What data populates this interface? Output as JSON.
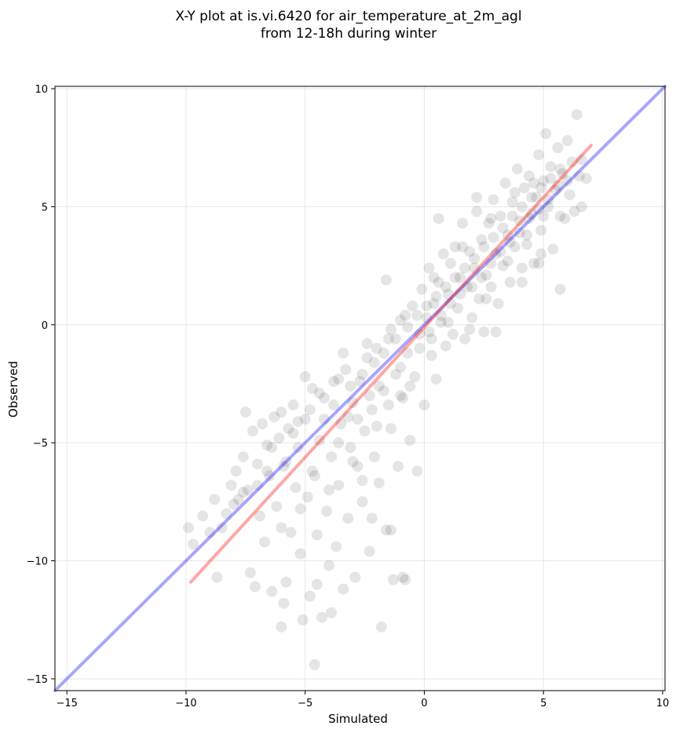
{
  "chart_data": {
    "type": "scatter",
    "title_line1": "X-Y plot at is.vi.6420 for air_temperature_at_2m_agl",
    "title_line2": "from 12-18h during winter",
    "xlabel": "Simulated",
    "ylabel": "Observed",
    "xlim": [
      -15.5,
      10.1
    ],
    "ylim": [
      -15.5,
      10.1
    ],
    "xticks": [
      -15,
      -10,
      -5,
      0,
      5,
      10
    ],
    "yticks": [
      -15,
      -10,
      -5,
      0,
      5,
      10
    ],
    "xtick_labels": [
      "−15",
      "−10",
      "−5",
      "0",
      "5",
      "10"
    ],
    "ytick_labels": [
      "−15",
      "−10",
      "−5",
      "0",
      "5",
      "10"
    ],
    "grid": true,
    "point_color": "#000000",
    "identity_line": {
      "color": "#0000ff",
      "x": [
        -15.5,
        10.1
      ],
      "y": [
        -15.5,
        10.1
      ]
    },
    "fit_line": {
      "color": "#ff0000",
      "x": [
        -9.8,
        7.0
      ],
      "y": [
        -10.9,
        7.6
      ]
    },
    "points": [
      [
        -9.9,
        -8.6
      ],
      [
        -9.7,
        -9.3
      ],
      [
        -9.3,
        -8.1
      ],
      [
        -9.0,
        -8.8
      ],
      [
        -8.8,
        -7.4
      ],
      [
        -8.7,
        -10.7
      ],
      [
        -8.5,
        -8.6
      ],
      [
        -8.3,
        -8.0
      ],
      [
        -8.1,
        -6.8
      ],
      [
        -7.9,
        -6.2
      ],
      [
        -7.8,
        -7.4
      ],
      [
        -7.6,
        -5.6
      ],
      [
        -7.5,
        -3.7
      ],
      [
        -7.4,
        -7.0
      ],
      [
        -7.3,
        -10.5
      ],
      [
        -7.2,
        -4.5
      ],
      [
        -7.1,
        -11.1
      ],
      [
        -7.0,
        -6.8
      ],
      [
        -6.9,
        -8.1
      ],
      [
        -6.8,
        -4.2
      ],
      [
        -6.7,
        -9.2
      ],
      [
        -6.6,
        -5.1
      ],
      [
        -6.5,
        -6.4
      ],
      [
        -6.4,
        -11.3
      ],
      [
        -6.3,
        -3.9
      ],
      [
        -6.2,
        -7.7
      ],
      [
        -6.1,
        -4.8
      ],
      [
        -6.0,
        -12.8
      ],
      [
        -5.9,
        -6.0
      ],
      [
        -5.8,
        -10.9
      ],
      [
        -5.7,
        -4.4
      ],
      [
        -5.6,
        -8.8
      ],
      [
        -5.5,
        -3.4
      ],
      [
        -5.4,
        -6.9
      ],
      [
        -5.3,
        -5.2
      ],
      [
        -5.2,
        -9.7
      ],
      [
        -5.1,
        -12.5
      ],
      [
        -5.0,
        -4.0
      ],
      [
        -4.9,
        -7.3
      ],
      [
        -4.8,
        -11.5
      ],
      [
        -4.7,
        -2.7
      ],
      [
        -4.6,
        -6.4
      ],
      [
        -4.5,
        -8.9
      ],
      [
        -4.4,
        -4.9
      ],
      [
        -4.3,
        -12.4
      ],
      [
        -4.2,
        -3.1
      ],
      [
        -4.1,
        -7.9
      ],
      [
        -4.0,
        -10.2
      ],
      [
        -3.9,
        -5.6
      ],
      [
        -3.8,
        -2.4
      ],
      [
        -3.7,
        -9.4
      ],
      [
        -3.6,
        -6.8
      ],
      [
        -3.5,
        -4.2
      ],
      [
        -3.4,
        -11.2
      ],
      [
        -3.3,
        -1.9
      ],
      [
        -3.2,
        -8.2
      ],
      [
        -3.1,
        -5.2
      ],
      [
        -3.0,
        -3.3
      ],
      [
        -2.9,
        -10.7
      ],
      [
        -2.8,
        -6.0
      ],
      [
        -2.7,
        -2.4
      ],
      [
        -2.6,
        -7.5
      ],
      [
        -2.5,
        -4.5
      ],
      [
        -2.4,
        -1.4
      ],
      [
        -2.3,
        -9.6
      ],
      [
        -2.2,
        -3.6
      ],
      [
        -2.1,
        -5.6
      ],
      [
        -2.0,
        -1.0
      ],
      [
        -1.9,
        -6.7
      ],
      [
        -1.8,
        -12.8
      ],
      [
        -1.7,
        -2.8
      ],
      [
        -1.6,
        -8.7
      ],
      [
        -1.5,
        -0.6
      ],
      [
        -1.4,
        -4.4
      ],
      [
        -1.3,
        -10.8
      ],
      [
        -1.2,
        -2.1
      ],
      [
        -1.1,
        -6.0
      ],
      [
        -1.0,
        0.2
      ],
      [
        -0.9,
        -3.1
      ],
      [
        -0.8,
        -10.8
      ],
      [
        -0.7,
        -1.2
      ],
      [
        -0.6,
        -4.9
      ],
      [
        -0.5,
        0.8
      ],
      [
        -0.4,
        -2.2
      ],
      [
        -0.3,
        -6.2
      ],
      [
        -0.2,
        -0.4
      ],
      [
        -0.1,
        1.5
      ],
      [
        0.0,
        -3.4
      ],
      [
        0.1,
        0.3
      ],
      [
        0.2,
        2.4
      ],
      [
        0.3,
        -1.3
      ],
      [
        0.4,
        0.9
      ],
      [
        0.5,
        -2.3
      ],
      [
        0.6,
        1.8
      ],
      [
        0.7,
        0.1
      ],
      [
        0.8,
        3.0
      ],
      [
        0.9,
        -0.9
      ],
      [
        1.0,
        1.3
      ],
      [
        1.1,
        2.6
      ],
      [
        1.2,
        -0.4
      ],
      [
        1.3,
        3.3
      ],
      [
        1.4,
        0.7
      ],
      [
        1.5,
        2.0
      ],
      [
        1.6,
        4.3
      ],
      [
        1.7,
        -0.6
      ],
      [
        1.8,
        1.6
      ],
      [
        1.9,
        3.1
      ],
      [
        2.0,
        0.3
      ],
      [
        2.1,
        2.4
      ],
      [
        2.2,
        4.8
      ],
      [
        2.3,
        1.1
      ],
      [
        2.4,
        3.6
      ],
      [
        2.5,
        -0.3
      ],
      [
        2.6,
        2.1
      ],
      [
        2.7,
        4.3
      ],
      [
        2.8,
        1.6
      ],
      [
        2.9,
        5.3
      ],
      [
        3.0,
        3.0
      ],
      [
        3.1,
        0.9
      ],
      [
        3.2,
        4.6
      ],
      [
        3.3,
        2.5
      ],
      [
        3.4,
        6.0
      ],
      [
        3.5,
        3.8
      ],
      [
        3.6,
        1.8
      ],
      [
        3.7,
        5.2
      ],
      [
        3.8,
        3.3
      ],
      [
        3.9,
        6.6
      ],
      [
        4.0,
        4.4
      ],
      [
        4.1,
        2.4
      ],
      [
        4.2,
        5.8
      ],
      [
        4.3,
        3.8
      ],
      [
        4.4,
        6.3
      ],
      [
        4.5,
        4.7
      ],
      [
        4.6,
        2.6
      ],
      [
        4.7,
        5.4
      ],
      [
        4.8,
        7.2
      ],
      [
        4.9,
        4.0
      ],
      [
        5.0,
        6.1
      ],
      [
        5.1,
        8.1
      ],
      [
        5.2,
        5.0
      ],
      [
        5.3,
        6.7
      ],
      [
        5.4,
        3.2
      ],
      [
        5.5,
        5.7
      ],
      [
        5.6,
        7.5
      ],
      [
        5.7,
        1.5
      ],
      [
        5.8,
        6.4
      ],
      [
        5.9,
        4.5
      ],
      [
        6.0,
        7.8
      ],
      [
        6.1,
        5.5
      ],
      [
        6.2,
        6.9
      ],
      [
        6.3,
        4.8
      ],
      [
        6.4,
        8.9
      ],
      [
        6.5,
        6.3
      ],
      [
        6.6,
        5.0
      ],
      [
        6.8,
        6.2
      ],
      [
        -4.6,
        -14.4
      ],
      [
        -5.9,
        -11.8
      ],
      [
        -4.5,
        -11.0
      ],
      [
        -3.9,
        -12.2
      ],
      [
        -2.2,
        -8.2
      ],
      [
        -1.4,
        -8.7
      ],
      [
        -0.9,
        -10.7
      ],
      [
        -2.6,
        -6.6
      ],
      [
        -5.0,
        -2.2
      ],
      [
        -3.4,
        -1.2
      ],
      [
        -1.6,
        1.9
      ],
      [
        -1.4,
        -0.2
      ],
      [
        0.6,
        4.5
      ],
      [
        2.2,
        5.4
      ],
      [
        1.9,
        -0.2
      ],
      [
        3.0,
        -0.3
      ],
      [
        4.1,
        1.8
      ],
      [
        4.8,
        2.6
      ],
      [
        4.9,
        3.0
      ],
      [
        5.7,
        4.6
      ],
      [
        6.6,
        7.0
      ],
      [
        -6.0,
        -3.7
      ],
      [
        -5.5,
        -4.6
      ],
      [
        -6.4,
        -5.2
      ],
      [
        -5.8,
        -5.8
      ],
      [
        -4.8,
        -3.6
      ],
      [
        -4.2,
        -4.0
      ],
      [
        -3.8,
        -3.4
      ],
      [
        -3.1,
        -2.6
      ],
      [
        -2.6,
        -2.1
      ],
      [
        -2.1,
        -1.6
      ],
      [
        -1.7,
        -1.2
      ],
      [
        -1.2,
        -0.6
      ],
      [
        -0.7,
        -0.1
      ],
      [
        -0.3,
        0.4
      ],
      [
        0.1,
        0.8
      ],
      [
        0.5,
        1.2
      ],
      [
        0.9,
        1.6
      ],
      [
        1.3,
        2.0
      ],
      [
        1.7,
        2.4
      ],
      [
        2.1,
        2.8
      ],
      [
        2.5,
        3.3
      ],
      [
        2.9,
        3.7
      ],
      [
        3.3,
        4.1
      ],
      [
        3.7,
        4.6
      ],
      [
        4.1,
        5.0
      ],
      [
        4.5,
        5.4
      ],
      [
        4.9,
        5.8
      ],
      [
        5.3,
        6.2
      ],
      [
        5.7,
        6.6
      ],
      [
        -7.0,
        -5.9
      ],
      [
        -6.6,
        -6.2
      ],
      [
        -7.6,
        -7.1
      ],
      [
        -8.0,
        -7.6
      ],
      [
        -6.0,
        -8.6
      ],
      [
        -5.2,
        -7.8
      ],
      [
        -4.7,
        -6.2
      ],
      [
        -4.0,
        -7.0
      ],
      [
        -3.6,
        -5.0
      ],
      [
        -3.0,
        -5.8
      ],
      [
        -2.8,
        -4.0
      ],
      [
        -2.3,
        -3.0
      ],
      [
        -1.9,
        -2.6
      ],
      [
        -1.5,
        -3.4
      ],
      [
        -1.0,
        -1.8
      ],
      [
        -0.6,
        -2.6
      ],
      [
        -0.2,
        -1.0
      ],
      [
        0.3,
        -0.6
      ],
      [
        0.7,
        0.4
      ],
      [
        1.1,
        0.9
      ],
      [
        1.5,
        1.3
      ],
      [
        2.0,
        1.6
      ],
      [
        2.4,
        2.0
      ],
      [
        2.8,
        2.6
      ],
      [
        3.2,
        3.1
      ],
      [
        3.6,
        3.5
      ],
      [
        4.0,
        3.9
      ],
      [
        4.4,
        4.5
      ],
      [
        4.8,
        4.9
      ],
      [
        5.2,
        5.3
      ],
      [
        5.6,
        5.9
      ],
      [
        6.0,
        6.1
      ],
      [
        -4.4,
        -2.9
      ],
      [
        -3.2,
        -3.9
      ],
      [
        -2.0,
        -4.3
      ],
      [
        -1.0,
        -3.0
      ],
      [
        0.2,
        -0.3
      ],
      [
        1.0,
        0.1
      ],
      [
        2.6,
        1.1
      ],
      [
        3.5,
        2.7
      ],
      [
        4.3,
        3.4
      ],
      [
        5.0,
        4.6
      ],
      [
        -5.3,
        -4.1
      ],
      [
        -3.6,
        -2.3
      ],
      [
        -2.4,
        -0.8
      ],
      [
        -0.8,
        0.4
      ],
      [
        0.4,
        2.0
      ],
      [
        1.6,
        3.3
      ],
      [
        2.8,
        4.5
      ],
      [
        3.8,
        5.6
      ],
      [
        4.6,
        6.0
      ]
    ]
  }
}
